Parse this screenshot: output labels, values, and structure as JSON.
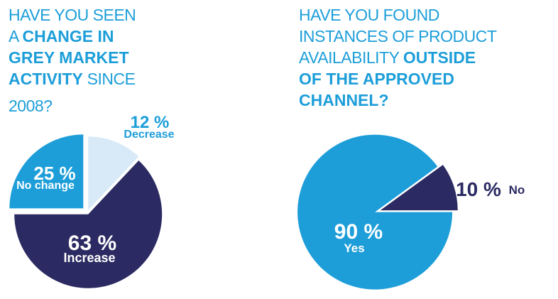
{
  "colors": {
    "cyan": "#1D9ED9",
    "navy": "#2B2A62",
    "pale_blue": "#D8EAF8",
    "white": "#FFFFFF"
  },
  "left_panel": {
    "title": {
      "l1": "HAVE YOU SEEN",
      "l2a": "A ",
      "l2b": "CHANGE IN",
      "l3": "GREY MARKET",
      "l4a": "ACTIVITY",
      "l4b": " SINCE",
      "l5": "2008?"
    }
  },
  "right_panel": {
    "title": {
      "l1": "HAVE YOU FOUND",
      "l2": "INSTANCES OF PRODUCT",
      "l3a": "AVAILABILITY ",
      "l3b": "OUTSIDE",
      "l4": "OF THE APPROVED",
      "l5": "CHANNEL?"
    }
  },
  "chart_data": [
    {
      "type": "pie",
      "title": "HAVE YOU SEEN A CHANGE IN GREY MARKET ACTIVITY SINCE 2008?",
      "legend_position": "none",
      "labels_on_chart": true,
      "start_angle_deg_from_top": 0,
      "slices": [
        {
          "label": "Decrease",
          "value": 12,
          "display": "12 %",
          "color": "#D8EAF8",
          "label_color": "#1D9ED9",
          "label_placement": "outside"
        },
        {
          "label": "Increase",
          "value": 63,
          "display": "63 %",
          "color": "#2B2A62",
          "label_color": "#FFFFFF",
          "label_placement": "inside"
        },
        {
          "label": "No change",
          "value": 25,
          "display": "25 %",
          "color": "#1D9ED9",
          "label_color": "#FFFFFF",
          "label_placement": "inside",
          "exploded": true
        }
      ]
    },
    {
      "type": "pie",
      "title": "HAVE YOU FOUND INSTANCES OF PRODUCT AVAILABILITY OUTSIDE OF THE APPROVED CHANNEL?",
      "legend_position": "none",
      "labels_on_chart": true,
      "start_angle_deg_from_top": 54,
      "slices": [
        {
          "label": "No",
          "value": 10,
          "display": "10 %",
          "color": "#2B2A62",
          "label_color": "#2B2A62",
          "label_placement": "outside"
        },
        {
          "label": "Yes",
          "value": 90,
          "display": "90 %",
          "color": "#1D9ED9",
          "label_color": "#FFFFFF",
          "label_placement": "inside"
        }
      ]
    }
  ]
}
